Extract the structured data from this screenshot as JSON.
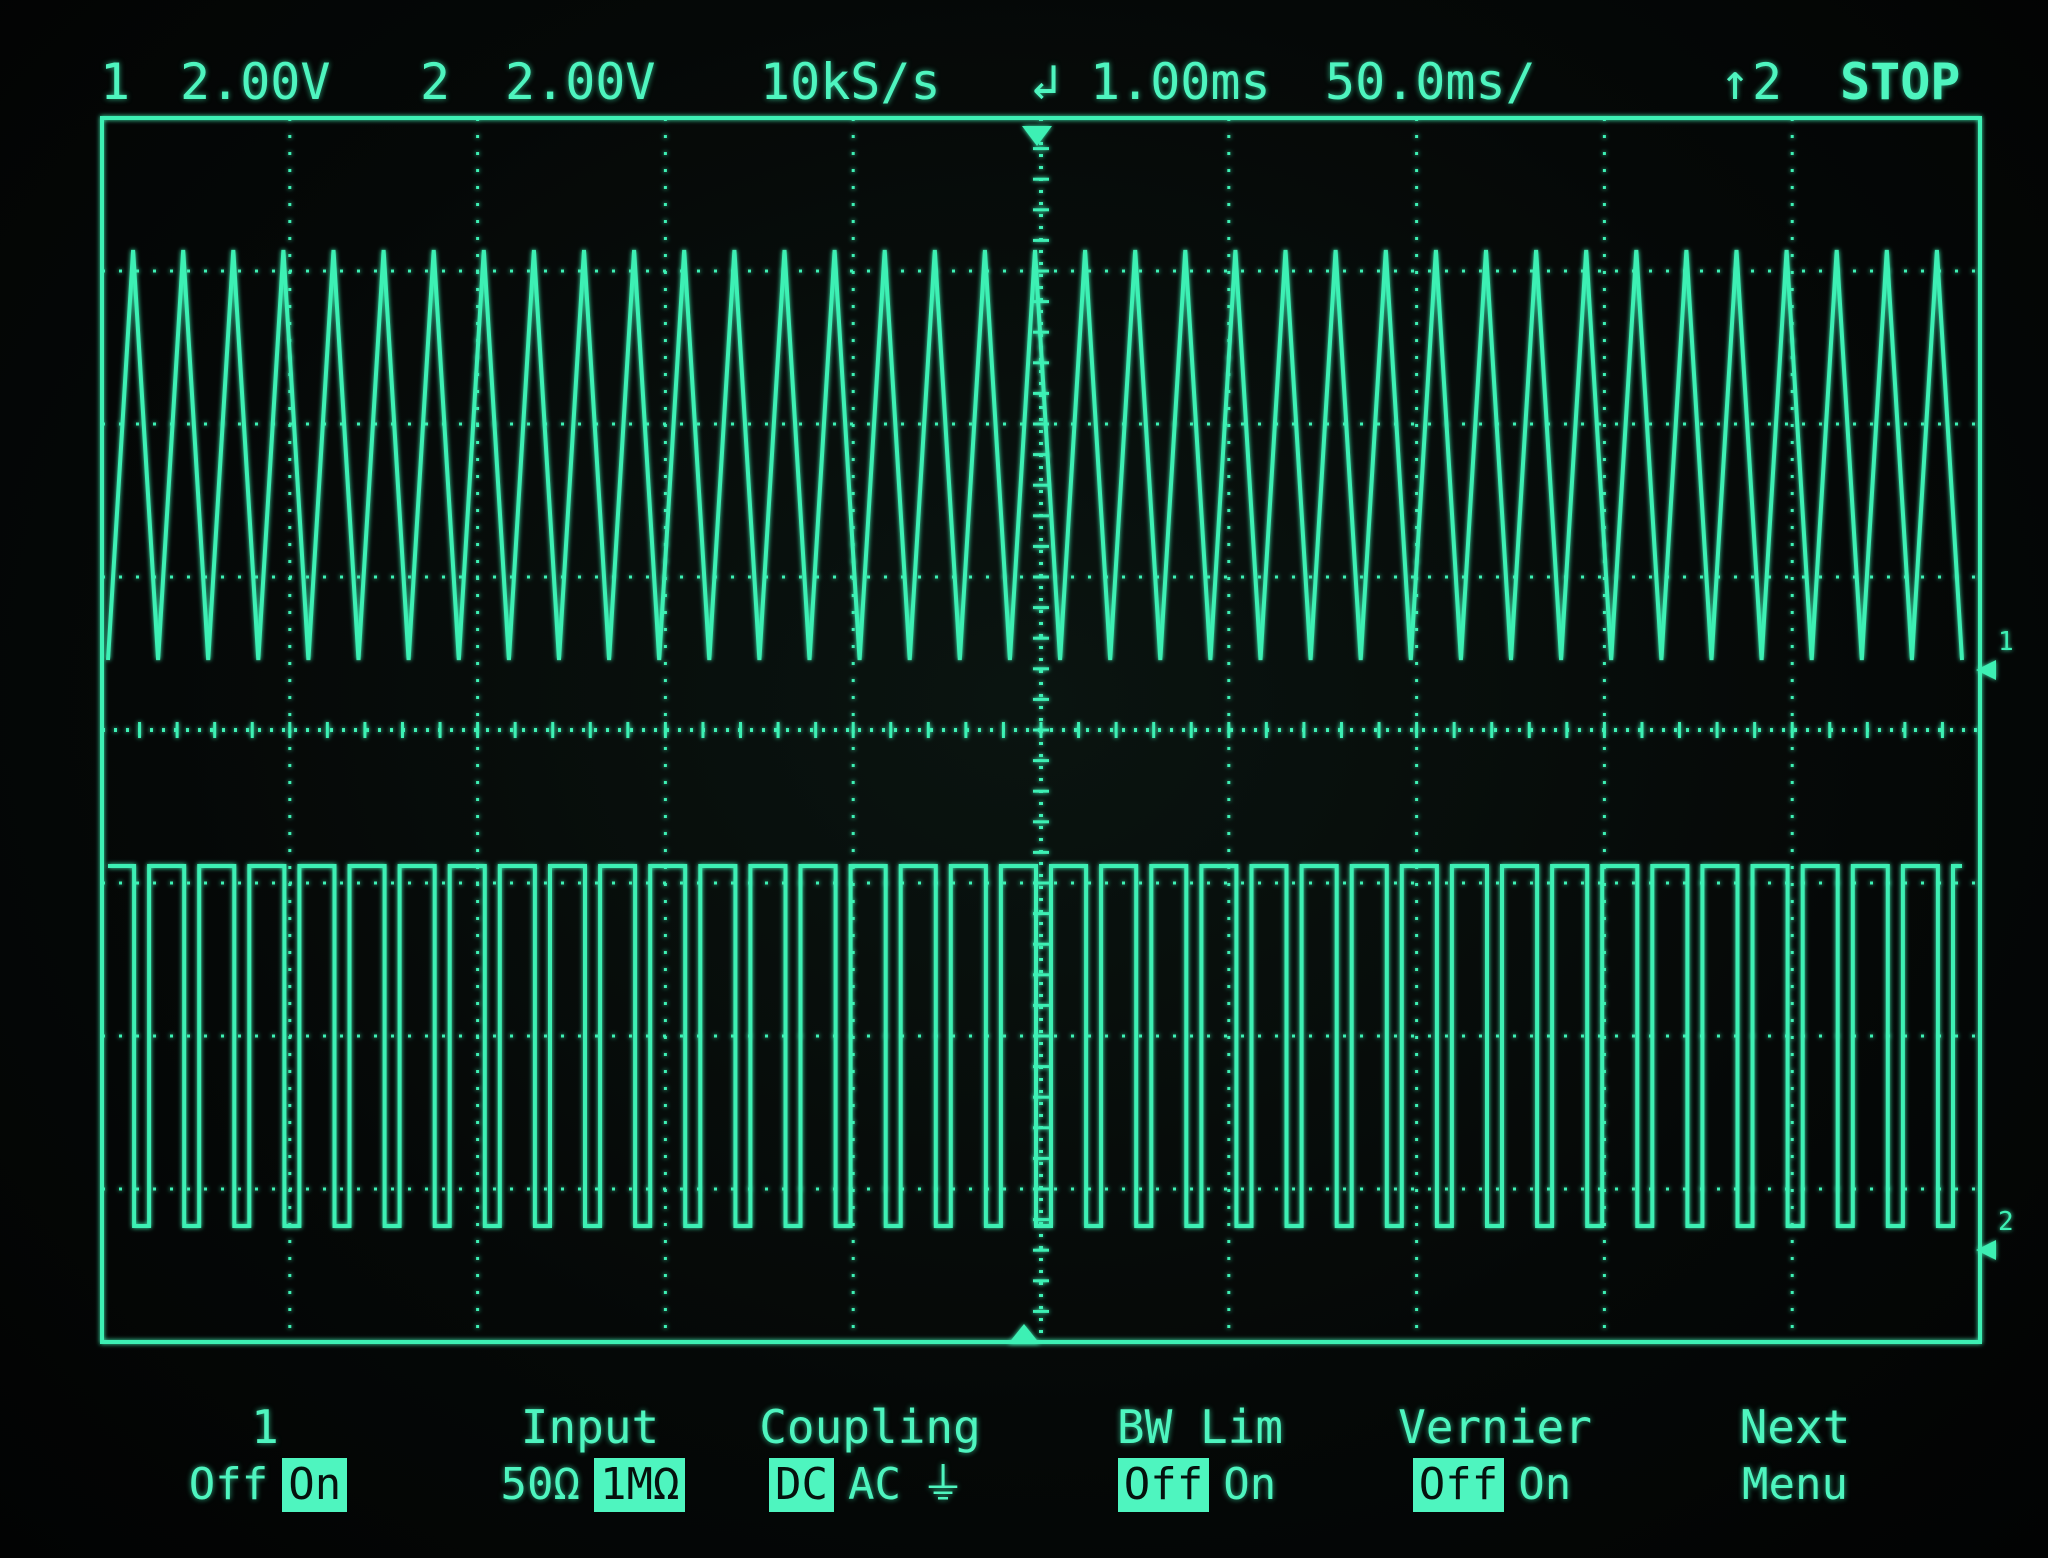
{
  "status": {
    "ch1_label": "1",
    "ch1_scale": "2.00V",
    "ch2_label": "2",
    "ch2_scale": "2.00V",
    "sample_rate": "10kS/s",
    "trigger_delay": "1.00ms",
    "timebase": "50.0ms/",
    "trigger_source": "2",
    "run_state": "STOP"
  },
  "markers": {
    "ch1_ground": "1",
    "ch2_ground": "2"
  },
  "softkeys": {
    "channel": {
      "title": "1",
      "options": [
        "Off",
        "On"
      ],
      "selected": 1
    },
    "input": {
      "title": "Input",
      "options": [
        "50Ω",
        "1MΩ"
      ],
      "selected": 1
    },
    "coupling": {
      "title": "Coupling",
      "options": [
        "DC",
        "AC",
        "⏚"
      ],
      "selected": 0
    },
    "bw_lim": {
      "title": "BW Lim",
      "options": [
        "Off",
        "On"
      ],
      "selected": 0
    },
    "vernier": {
      "title": "Vernier",
      "options": [
        "Off",
        "On"
      ],
      "selected": 0
    },
    "next_menu": {
      "title": "Next",
      "line2": "Menu"
    }
  },
  "colors": {
    "trace": "#3cf0b4",
    "background": "#050807"
  },
  "waveforms": {
    "ch1": {
      "type": "triangle",
      "periods": 37
    },
    "ch2": {
      "type": "square",
      "periods": 37
    }
  }
}
